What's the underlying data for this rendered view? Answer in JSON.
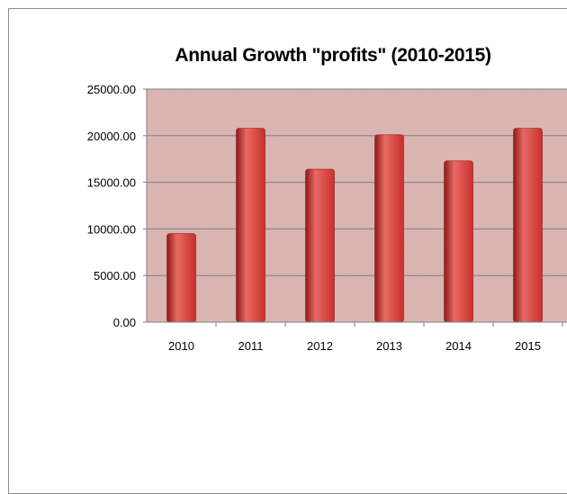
{
  "chart_data": {
    "type": "bar",
    "title": "Annual Growth \"profits\" (2010-2015)",
    "xlabel": "",
    "ylabel": "",
    "categories": [
      "2010",
      "2011",
      "2012",
      "2013",
      "2014",
      "2015"
    ],
    "series": [
      {
        "values": [
          9500,
          20800,
          16400,
          20100,
          17300,
          20800
        ]
      }
    ],
    "ylim": [
      0,
      25000
    ],
    "yticks": [
      "0.00",
      "5000.00",
      "10000.00",
      "15000.00",
      "20000.00",
      "25000.00"
    ],
    "grid": true,
    "legend": "none",
    "colors": {
      "bar": "#c8302e",
      "bar_light": "#e86a62",
      "bar_dark": "#8e1a18",
      "plot_background": "#dcb7b4",
      "gridline": "#7f7f7f"
    }
  }
}
